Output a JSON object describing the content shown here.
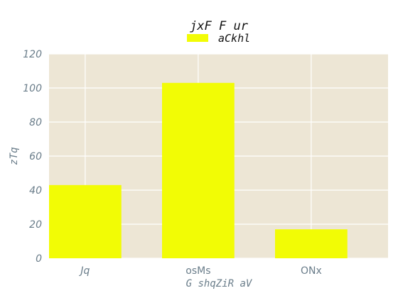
{
  "chart_data": {
    "type": "bar",
    "title": "jxF  F   ur",
    "xlabel": "G shqZiR aV",
    "ylabel": "zTq",
    "categories": [
      "Jq",
      "osMs",
      "ONx"
    ],
    "series": [
      {
        "name": "aCkhl",
        "values": [
          43,
          103,
          17
        ],
        "color": "#f2fc05"
      }
    ],
    "ylim": [
      0,
      120
    ],
    "yticks": [
      0,
      20,
      40,
      60,
      80,
      100,
      120
    ],
    "grid": true,
    "legend_position": "top-center",
    "colors": {
      "plot_background": "#ede6d5",
      "grid": "#ffffff",
      "tick_text": "#6a7d8a"
    }
  }
}
